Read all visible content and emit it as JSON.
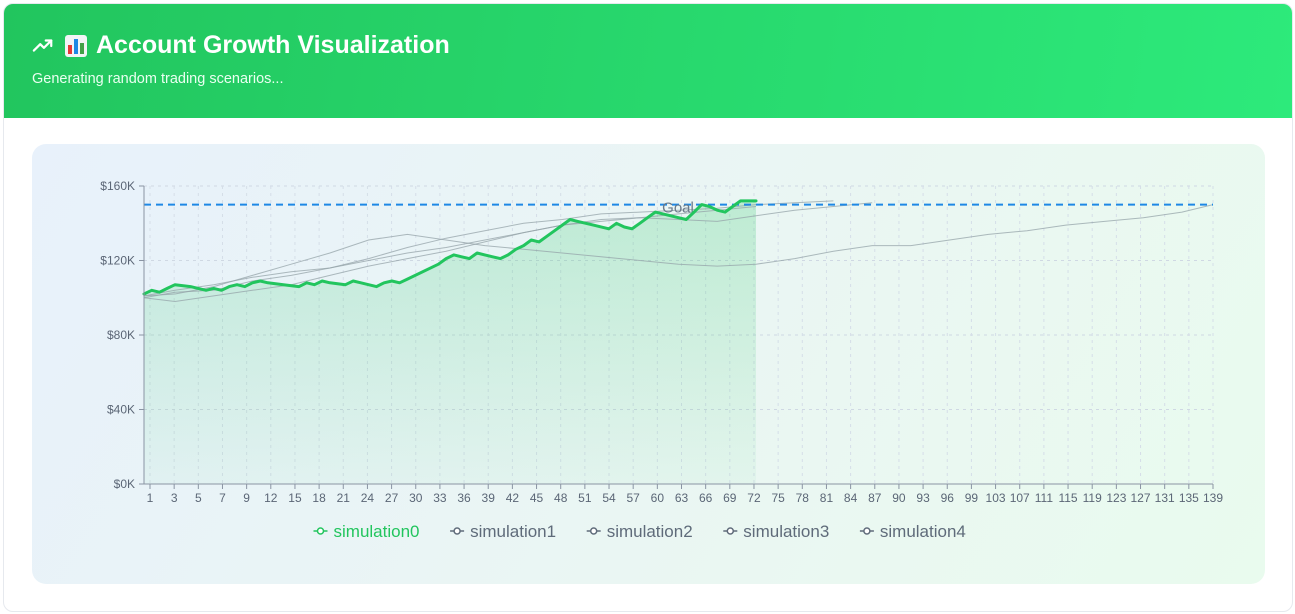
{
  "header": {
    "title": "Account Growth Visualization",
    "subtitle": "Generating random trading scenarios...",
    "trend_icon": "trending-up-icon",
    "chart_icon": "bar-chart-icon",
    "bg_color_start": "#22c55e",
    "bg_color_end": "#2dea7b"
  },
  "chart_data": {
    "type": "line",
    "title": "",
    "xlabel": "",
    "ylabel": "",
    "x_range": [
      1,
      139
    ],
    "ylim": [
      0,
      160000
    ],
    "y_ticks": [
      0,
      40000,
      80000,
      120000,
      160000
    ],
    "y_tick_labels": [
      "$0K",
      "$40K",
      "$80K",
      "$120K",
      "$160K"
    ],
    "x_tick_labels": [
      "1",
      "3",
      "5",
      "7",
      "9",
      "12",
      "15",
      "18",
      "21",
      "24",
      "27",
      "30",
      "33",
      "36",
      "39",
      "42",
      "45",
      "48",
      "51",
      "54",
      "57",
      "60",
      "63",
      "66",
      "69",
      "72",
      "75",
      "78",
      "81",
      "84",
      "87",
      "90",
      "93",
      "96",
      "99",
      "103",
      "107",
      "111",
      "115",
      "119",
      "123",
      "127",
      "131",
      "135",
      "139"
    ],
    "grid": true,
    "legend_position": "bottom",
    "goal": {
      "label": "Goal",
      "value": 150000,
      "color": "#1e88e5"
    },
    "series": [
      {
        "name": "simulation0",
        "color": "#22c55e",
        "highlighted": true,
        "x": [
          1,
          2,
          3,
          4,
          5,
          7,
          9,
          10,
          11,
          12,
          13,
          14,
          15,
          16,
          17,
          19,
          21,
          22,
          23,
          24,
          25,
          27,
          28,
          29,
          30,
          31,
          32,
          33,
          34,
          35,
          39,
          40,
          41,
          42,
          43,
          44,
          45,
          46,
          47,
          48,
          49,
          50,
          51,
          52,
          53,
          54,
          55,
          56,
          57,
          59,
          61,
          62,
          63,
          64,
          65,
          66,
          67,
          68,
          69,
          70,
          71,
          72,
          73,
          74,
          75,
          76,
          77,
          78,
          79,
          80
        ],
        "values": [
          102000,
          104000,
          103000,
          105000,
          107000,
          106000,
          104000,
          105000,
          104000,
          106000,
          107000,
          106000,
          108000,
          109000,
          108000,
          107000,
          106000,
          108000,
          107000,
          109000,
          108000,
          107000,
          109000,
          108000,
          107000,
          106000,
          108000,
          109000,
          108000,
          110000,
          118000,
          121000,
          123000,
          122000,
          121000,
          124000,
          123000,
          122000,
          121000,
          123000,
          126000,
          128000,
          131000,
          130000,
          133000,
          136000,
          139000,
          142000,
          141000,
          139000,
          137000,
          140000,
          138000,
          137000,
          140000,
          143000,
          146000,
          145000,
          144000,
          143000,
          142000,
          146000,
          150000,
          149000,
          147000,
          146000,
          149000,
          152000,
          152000,
          152000
        ]
      },
      {
        "name": "simulation1",
        "color": "#94a3a8",
        "x": [
          1,
          5,
          10,
          15,
          20,
          25,
          30,
          35,
          40,
          45,
          50,
          55,
          60,
          65,
          70,
          75,
          80,
          85,
          90
        ],
        "values": [
          100000,
          103000,
          104000,
          109000,
          112000,
          116000,
          121000,
          127000,
          132000,
          136000,
          140000,
          142000,
          145000,
          146000,
          147000,
          148000,
          150000,
          151000,
          152000
        ]
      },
      {
        "name": "simulation2",
        "color": "#94a3a8",
        "x": [
          1,
          5,
          10,
          15,
          20,
          25,
          30,
          35,
          40,
          45,
          50,
          55,
          60,
          65,
          70,
          75,
          80
        ],
        "values": [
          100000,
          98000,
          101000,
          104000,
          107000,
          112000,
          117000,
          121000,
          125000,
          130000,
          135000,
          139000,
          141000,
          143000,
          145000,
          147000,
          149000
        ]
      },
      {
        "name": "simulation3",
        "color": "#94a3a8",
        "x": [
          1,
          5,
          10,
          15,
          20,
          25,
          30,
          35,
          40,
          45,
          50,
          55,
          60,
          65,
          70,
          75,
          80,
          85,
          90,
          95,
          100,
          105,
          110,
          115,
          120,
          125,
          130,
          135,
          139
        ],
        "values": [
          101000,
          102000,
          106000,
          112000,
          118000,
          124000,
          131000,
          134000,
          131000,
          128000,
          126000,
          124000,
          122000,
          120000,
          118000,
          117000,
          118000,
          121000,
          125000,
          128000,
          128000,
          131000,
          134000,
          136000,
          139000,
          141000,
          143000,
          146000,
          150000
        ]
      },
      {
        "name": "simulation4",
        "color": "#94a3a8",
        "x": [
          1,
          5,
          10,
          15,
          20,
          25,
          30,
          35,
          40,
          45,
          50,
          55,
          60,
          65,
          70,
          75,
          80,
          85,
          90,
          95
        ],
        "values": [
          101000,
          104000,
          107000,
          111000,
          114000,
          116000,
          120000,
          124000,
          127000,
          131000,
          135000,
          139000,
          142000,
          143000,
          142000,
          141000,
          144000,
          147000,
          149000,
          151000
        ]
      }
    ]
  }
}
